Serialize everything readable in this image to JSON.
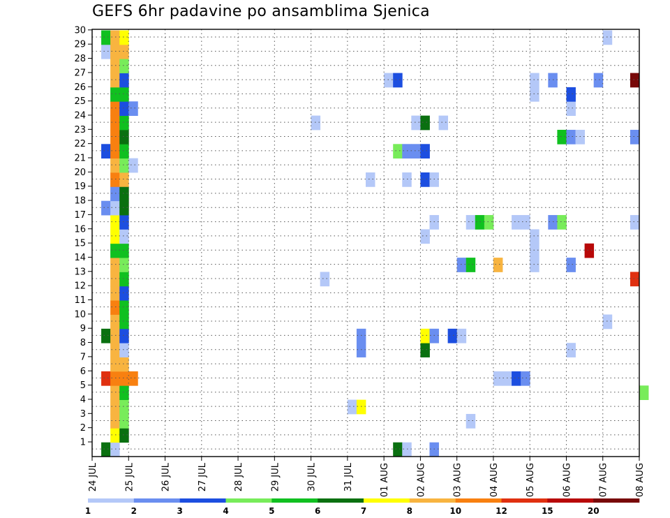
{
  "chart_data": {
    "type": "heatmap",
    "title": "GEFS 6hr padavine po ansamblima Sjenica",
    "y_ticks": [
      "1",
      "2",
      "3",
      "4",
      "5",
      "6",
      "7",
      "8",
      "9",
      "10",
      "11",
      "12",
      "13",
      "14",
      "15",
      "16",
      "17",
      "18",
      "19",
      "20",
      "21",
      "22",
      "23",
      "24",
      "25",
      "26",
      "27",
      "28",
      "29",
      "30"
    ],
    "x_ticks": [
      "24 JUL",
      "25 JUL",
      "26 JUL",
      "27 JUL",
      "28 JUL",
      "29 JUL",
      "30 JUL",
      "31 JUL",
      "01 AUG",
      "02 AUG",
      "03 AUG",
      "04 AUG",
      "05 AUG",
      "06 AUG",
      "07 AUG",
      "08 AUG"
    ],
    "grid": true,
    "colorbar": {
      "boundaries": [
        "1",
        "2",
        "3",
        "4",
        "5",
        "6",
        "7",
        "8",
        "10",
        "12",
        "15",
        "20"
      ],
      "colors": [
        "#b4c8f8",
        "#6a8ef0",
        "#1c4ee0",
        "#78ec5a",
        "#10c020",
        "#0a7010",
        "#ffff00",
        "#f8b440",
        "#f88010",
        "#e03010",
        "#b80808",
        "#780808"
      ]
    },
    "cells": [
      {
        "member": 0,
        "day": "24 JUL",
        "step": 1,
        "c": "#0a7010"
      },
      {
        "member": 0,
        "day": "24 JUL",
        "step": 2,
        "c": "#b4c8f8"
      },
      {
        "member": 0,
        "day": "01 AUG",
        "step": 1,
        "c": "#0a7010"
      },
      {
        "member": 0,
        "day": "01 AUG",
        "step": 2,
        "c": "#b4c8f8"
      },
      {
        "member": 0,
        "day": "02 AUG",
        "step": 1,
        "c": "#6a8ef0"
      },
      {
        "member": 1,
        "day": "24 JUL",
        "step": 2,
        "c": "#ffff00"
      },
      {
        "member": 1,
        "day": "24 JUL",
        "step": 3,
        "c": "#0a7010"
      },
      {
        "member": 2,
        "day": "24 JUL",
        "step": 2,
        "c": "#f8b440"
      },
      {
        "member": 2,
        "day": "24 JUL",
        "step": 3,
        "c": "#78ec5a"
      },
      {
        "member": 2,
        "day": "03 AUG",
        "step": 1,
        "c": "#b4c8f8"
      },
      {
        "member": 3,
        "day": "24 JUL",
        "step": 2,
        "c": "#f8b440"
      },
      {
        "member": 3,
        "day": "24 JUL",
        "step": 3,
        "c": "#78ec5a"
      },
      {
        "member": 3,
        "day": "31 JUL",
        "step": 0,
        "c": "#b4c8f8"
      },
      {
        "member": 3,
        "day": "31 JUL",
        "step": 1,
        "c": "#ffff00"
      },
      {
        "member": 4,
        "day": "24 JUL",
        "step": 2,
        "c": "#f8b440"
      },
      {
        "member": 4,
        "day": "24 JUL",
        "step": 3,
        "c": "#10c020"
      },
      {
        "member": 4,
        "day": "08 AUG",
        "step": 0,
        "c": "#78ec5a"
      },
      {
        "member": 5,
        "day": "24 JUL",
        "step": 1,
        "c": "#e03010"
      },
      {
        "member": 5,
        "day": "24 JUL",
        "step": 2,
        "c": "#f88010"
      },
      {
        "member": 5,
        "day": "24 JUL",
        "step": 3,
        "c": "#f88010"
      },
      {
        "member": 5,
        "day": "25 JUL",
        "step": 0,
        "c": "#f88010"
      },
      {
        "member": 5,
        "day": "04 AUG",
        "step": 0,
        "c": "#b4c8f8"
      },
      {
        "member": 5,
        "day": "04 AUG",
        "step": 1,
        "c": "#b4c8f8"
      },
      {
        "member": 5,
        "day": "04 AUG",
        "step": 2,
        "c": "#1c4ee0"
      },
      {
        "member": 5,
        "day": "04 AUG",
        "step": 3,
        "c": "#6a8ef0"
      },
      {
        "member": 6,
        "day": "24 JUL",
        "step": 2,
        "c": "#f8b440"
      },
      {
        "member": 6,
        "day": "24 JUL",
        "step": 3,
        "c": "#f8b440"
      },
      {
        "member": 7,
        "day": "24 JUL",
        "step": 2,
        "c": "#f8b440"
      },
      {
        "member": 7,
        "day": "24 JUL",
        "step": 3,
        "c": "#b4c8f8"
      },
      {
        "member": 7,
        "day": "31 JUL",
        "step": 1,
        "c": "#6a8ef0"
      },
      {
        "member": 7,
        "day": "02 AUG",
        "step": 0,
        "c": "#0a7010"
      },
      {
        "member": 7,
        "day": "06 AUG",
        "step": 0,
        "c": "#b4c8f8"
      },
      {
        "member": 8,
        "day": "24 JUL",
        "step": 1,
        "c": "#0a7010"
      },
      {
        "member": 8,
        "day": "24 JUL",
        "step": 2,
        "c": "#f8b440"
      },
      {
        "member": 8,
        "day": "24 JUL",
        "step": 3,
        "c": "#1c4ee0"
      },
      {
        "member": 8,
        "day": "31 JUL",
        "step": 1,
        "c": "#6a8ef0"
      },
      {
        "member": 8,
        "day": "02 AUG",
        "step": 0,
        "c": "#ffff00"
      },
      {
        "member": 8,
        "day": "02 AUG",
        "step": 1,
        "c": "#6a8ef0"
      },
      {
        "member": 8,
        "day": "02 AUG",
        "step": 3,
        "c": "#1c4ee0"
      },
      {
        "member": 8,
        "day": "03 AUG",
        "step": 0,
        "c": "#b4c8f8"
      },
      {
        "member": 9,
        "day": "24 JUL",
        "step": 2,
        "c": "#f8b440"
      },
      {
        "member": 9,
        "day": "24 JUL",
        "step": 3,
        "c": "#10c020"
      },
      {
        "member": 9,
        "day": "07 AUG",
        "step": 0,
        "c": "#b4c8f8"
      },
      {
        "member": 10,
        "day": "24 JUL",
        "step": 2,
        "c": "#f88010"
      },
      {
        "member": 10,
        "day": "24 JUL",
        "step": 3,
        "c": "#10c020"
      },
      {
        "member": 11,
        "day": "24 JUL",
        "step": 2,
        "c": "#f8b440"
      },
      {
        "member": 11,
        "day": "24 JUL",
        "step": 3,
        "c": "#1c4ee0"
      },
      {
        "member": 12,
        "day": "24 JUL",
        "step": 2,
        "c": "#f8b440"
      },
      {
        "member": 12,
        "day": "24 JUL",
        "step": 3,
        "c": "#10c020"
      },
      {
        "member": 12,
        "day": "30 JUL",
        "step": 1,
        "c": "#b4c8f8"
      },
      {
        "member": 12,
        "day": "07 AUG",
        "step": 3,
        "c": "#e03010"
      },
      {
        "member": 13,
        "day": "24 JUL",
        "step": 2,
        "c": "#f8b440"
      },
      {
        "member": 13,
        "day": "24 JUL",
        "step": 3,
        "c": "#78ec5a"
      },
      {
        "member": 13,
        "day": "03 AUG",
        "step": 0,
        "c": "#6a8ef0"
      },
      {
        "member": 13,
        "day": "03 AUG",
        "step": 1,
        "c": "#10c020"
      },
      {
        "member": 13,
        "day": "04 AUG",
        "step": 0,
        "c": "#f8b440"
      },
      {
        "member": 13,
        "day": "05 AUG",
        "step": 0,
        "c": "#b4c8f8"
      },
      {
        "member": 13,
        "day": "06 AUG",
        "step": 0,
        "c": "#6a8ef0"
      },
      {
        "member": 14,
        "day": "24 JUL",
        "step": 2,
        "c": "#10c020"
      },
      {
        "member": 14,
        "day": "24 JUL",
        "step": 3,
        "c": "#10c020"
      },
      {
        "member": 14,
        "day": "05 AUG",
        "step": 0,
        "c": "#b4c8f8"
      },
      {
        "member": 14,
        "day": "06 AUG",
        "step": 2,
        "c": "#b80808"
      },
      {
        "member": 15,
        "day": "24 JUL",
        "step": 2,
        "c": "#ffff00"
      },
      {
        "member": 15,
        "day": "24 JUL",
        "step": 3,
        "c": "#b4c8f8"
      },
      {
        "member": 15,
        "day": "02 AUG",
        "step": 0,
        "c": "#b4c8f8"
      },
      {
        "member": 15,
        "day": "05 AUG",
        "step": 0,
        "c": "#b4c8f8"
      },
      {
        "member": 16,
        "day": "24 JUL",
        "step": 2,
        "c": "#ffff00"
      },
      {
        "member": 16,
        "day": "24 JUL",
        "step": 3,
        "c": "#1c4ee0"
      },
      {
        "member": 16,
        "day": "02 AUG",
        "step": 1,
        "c": "#b4c8f8"
      },
      {
        "member": 16,
        "day": "03 AUG",
        "step": 1,
        "c": "#b4c8f8"
      },
      {
        "member": 16,
        "day": "03 AUG",
        "step": 2,
        "c": "#10c020"
      },
      {
        "member": 16,
        "day": "03 AUG",
        "step": 3,
        "c": "#78ec5a"
      },
      {
        "member": 16,
        "day": "04 AUG",
        "step": 2,
        "c": "#b4c8f8"
      },
      {
        "member": 16,
        "day": "04 AUG",
        "step": 3,
        "c": "#b4c8f8"
      },
      {
        "member": 16,
        "day": "05 AUG",
        "step": 2,
        "c": "#6a8ef0"
      },
      {
        "member": 16,
        "day": "05 AUG",
        "step": 3,
        "c": "#78ec5a"
      },
      {
        "member": 16,
        "day": "07 AUG",
        "step": 3,
        "c": "#b4c8f8"
      },
      {
        "member": 17,
        "day": "24 JUL",
        "step": 1,
        "c": "#6a8ef0"
      },
      {
        "member": 17,
        "day": "24 JUL",
        "step": 2,
        "c": "#b4c8f8"
      },
      {
        "member": 17,
        "day": "24 JUL",
        "step": 3,
        "c": "#0a7010"
      },
      {
        "member": 18,
        "day": "24 JUL",
        "step": 2,
        "c": "#6a8ef0"
      },
      {
        "member": 18,
        "day": "24 JUL",
        "step": 3,
        "c": "#0a7010"
      },
      {
        "member": 19,
        "day": "24 JUL",
        "step": 2,
        "c": "#f88010"
      },
      {
        "member": 19,
        "day": "24 JUL",
        "step": 3,
        "c": "#f8b440"
      },
      {
        "member": 19,
        "day": "31 JUL",
        "step": 2,
        "c": "#b4c8f8"
      },
      {
        "member": 19,
        "day": "01 AUG",
        "step": 2,
        "c": "#b4c8f8"
      },
      {
        "member": 19,
        "day": "02 AUG",
        "step": 0,
        "c": "#1c4ee0"
      },
      {
        "member": 19,
        "day": "02 AUG",
        "step": 1,
        "c": "#b4c8f8"
      },
      {
        "member": 20,
        "day": "24 JUL",
        "step": 2,
        "c": "#f8b440"
      },
      {
        "member": 20,
        "day": "24 JUL",
        "step": 3,
        "c": "#78ec5a"
      },
      {
        "member": 20,
        "day": "25 JUL",
        "step": 0,
        "c": "#b4c8f8"
      },
      {
        "member": 21,
        "day": "24 JUL",
        "step": 1,
        "c": "#1c4ee0"
      },
      {
        "member": 21,
        "day": "24 JUL",
        "step": 2,
        "c": "#f88010"
      },
      {
        "member": 21,
        "day": "24 JUL",
        "step": 3,
        "c": "#10c020"
      },
      {
        "member": 21,
        "day": "01 AUG",
        "step": 1,
        "c": "#78ec5a"
      },
      {
        "member": 21,
        "day": "01 AUG",
        "step": 2,
        "c": "#6a8ef0"
      },
      {
        "member": 21,
        "day": "01 AUG",
        "step": 3,
        "c": "#6a8ef0"
      },
      {
        "member": 21,
        "day": "02 AUG",
        "step": 0,
        "c": "#1c4ee0"
      },
      {
        "member": 22,
        "day": "24 JUL",
        "step": 2,
        "c": "#f88010"
      },
      {
        "member": 22,
        "day": "24 JUL",
        "step": 3,
        "c": "#0a7010"
      },
      {
        "member": 22,
        "day": "05 AUG",
        "step": 3,
        "c": "#10c020"
      },
      {
        "member": 22,
        "day": "06 AUG",
        "step": 0,
        "c": "#6a8ef0"
      },
      {
        "member": 22,
        "day": "06 AUG",
        "step": 1,
        "c": "#b4c8f8"
      },
      {
        "member": 22,
        "day": "07 AUG",
        "step": 3,
        "c": "#6a8ef0"
      },
      {
        "member": 23,
        "day": "24 JUL",
        "step": 2,
        "c": "#f88010"
      },
      {
        "member": 23,
        "day": "24 JUL",
        "step": 3,
        "c": "#10c020"
      },
      {
        "member": 23,
        "day": "30 JUL",
        "step": 0,
        "c": "#b4c8f8"
      },
      {
        "member": 23,
        "day": "01 AUG",
        "step": 3,
        "c": "#b4c8f8"
      },
      {
        "member": 23,
        "day": "02 AUG",
        "step": 0,
        "c": "#0a7010"
      },
      {
        "member": 23,
        "day": "02 AUG",
        "step": 2,
        "c": "#b4c8f8"
      },
      {
        "member": 24,
        "day": "24 JUL",
        "step": 2,
        "c": "#f88010"
      },
      {
        "member": 24,
        "day": "24 JUL",
        "step": 3,
        "c": "#1c4ee0"
      },
      {
        "member": 24,
        "day": "25 JUL",
        "step": 0,
        "c": "#6a8ef0"
      },
      {
        "member": 24,
        "day": "06 AUG",
        "step": 0,
        "c": "#b4c8f8"
      },
      {
        "member": 25,
        "day": "24 JUL",
        "step": 2,
        "c": "#10c020"
      },
      {
        "member": 25,
        "day": "24 JUL",
        "step": 3,
        "c": "#10c020"
      },
      {
        "member": 25,
        "day": "05 AUG",
        "step": 0,
        "c": "#b4c8f8"
      },
      {
        "member": 25,
        "day": "06 AUG",
        "step": 0,
        "c": "#1c4ee0"
      },
      {
        "member": 26,
        "day": "24 JUL",
        "step": 2,
        "c": "#f8b440"
      },
      {
        "member": 26,
        "day": "24 JUL",
        "step": 3,
        "c": "#1c4ee0"
      },
      {
        "member": 26,
        "day": "01 AUG",
        "step": 0,
        "c": "#b4c8f8"
      },
      {
        "member": 26,
        "day": "01 AUG",
        "step": 1,
        "c": "#1c4ee0"
      },
      {
        "member": 26,
        "day": "05 AUG",
        "step": 0,
        "c": "#b4c8f8"
      },
      {
        "member": 26,
        "day": "05 AUG",
        "step": 2,
        "c": "#6a8ef0"
      },
      {
        "member": 26,
        "day": "06 AUG",
        "step": 3,
        "c": "#6a8ef0"
      },
      {
        "member": 26,
        "day": "07 AUG",
        "step": 3,
        "c": "#780808"
      },
      {
        "member": 27,
        "day": "24 JUL",
        "step": 2,
        "c": "#f8b440"
      },
      {
        "member": 27,
        "day": "24 JUL",
        "step": 3,
        "c": "#78ec5a"
      },
      {
        "member": 28,
        "day": "24 JUL",
        "step": 1,
        "c": "#b4c8f8"
      },
      {
        "member": 28,
        "day": "24 JUL",
        "step": 2,
        "c": "#f8b440"
      },
      {
        "member": 28,
        "day": "24 JUL",
        "step": 3,
        "c": "#f8b440"
      },
      {
        "member": 29,
        "day": "24 JUL",
        "step": 1,
        "c": "#10c020"
      },
      {
        "member": 29,
        "day": "24 JUL",
        "step": 2,
        "c": "#f8b440"
      },
      {
        "member": 29,
        "day": "24 JUL",
        "step": 3,
        "c": "#ffff00"
      },
      {
        "member": 29,
        "day": "07 AUG",
        "step": 0,
        "c": "#b4c8f8"
      }
    ]
  }
}
